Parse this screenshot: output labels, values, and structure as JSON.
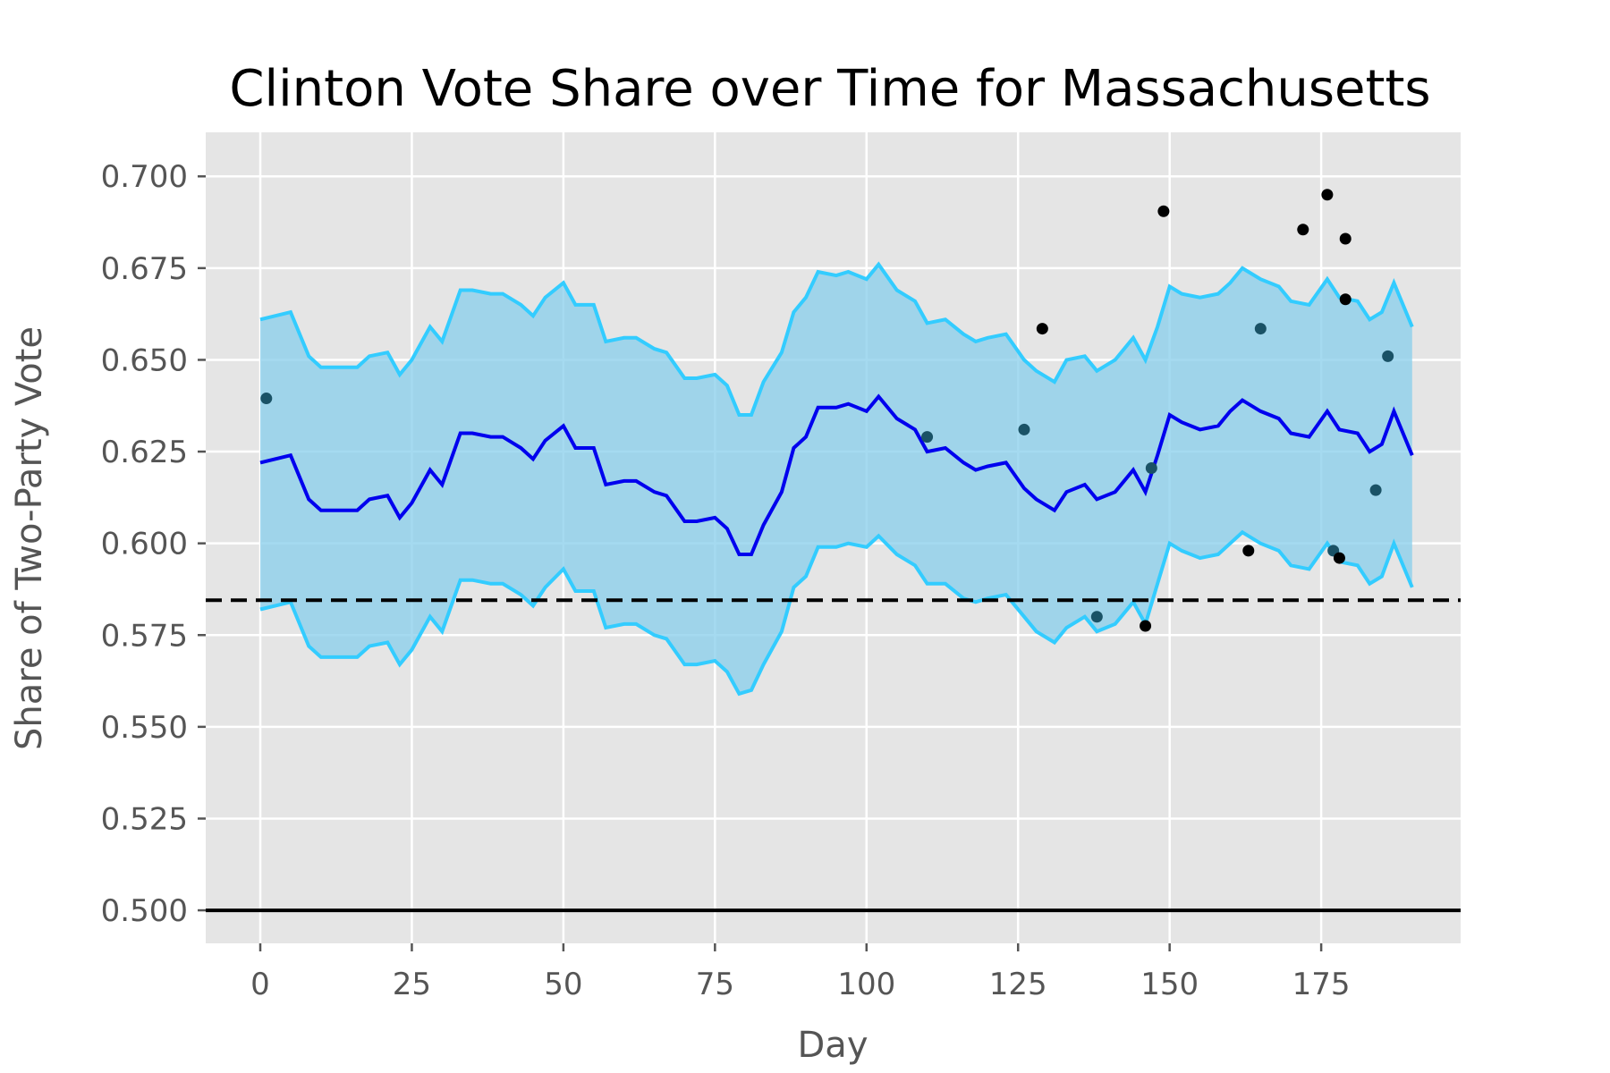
{
  "chart_data": {
    "type": "line",
    "title": "Clinton Vote Share over Time for Massachusetts",
    "xlabel": "Day",
    "ylabel": "Share of Two-Party Vote",
    "xlim": [
      -9,
      198
    ],
    "ylim": [
      0.491,
      0.712
    ],
    "x_ticks": [
      0,
      25,
      50,
      75,
      100,
      125,
      150,
      175
    ],
    "x_tick_labels": [
      "0",
      "25",
      "50",
      "75",
      "100",
      "125",
      "150",
      "175"
    ],
    "y_ticks": [
      0.5,
      0.525,
      0.55,
      0.575,
      0.6,
      0.625,
      0.65,
      0.675,
      0.7
    ],
    "y_tick_labels": [
      "0.500",
      "0.525",
      "0.550",
      "0.575",
      "0.600",
      "0.625",
      "0.650",
      "0.675",
      "0.700"
    ],
    "grid": true,
    "reference_lines": [
      {
        "style": "dashed",
        "color": "#000000",
        "y": 0.5845
      },
      {
        "style": "solid",
        "color": "#000000",
        "y": 0.5
      }
    ],
    "series": [
      {
        "role": "mean",
        "color": "#0000ee",
        "x": [
          0,
          5,
          8,
          10,
          13,
          16,
          18,
          21,
          23,
          25,
          28,
          30,
          33,
          35,
          38,
          40,
          43,
          45,
          47,
          50,
          52,
          55,
          57,
          60,
          62,
          65,
          67,
          70,
          72,
          75,
          77,
          79,
          81,
          83,
          86,
          88,
          90,
          92,
          95,
          97,
          100,
          102,
          105,
          108,
          110,
          113,
          116,
          118,
          120,
          123,
          126,
          128,
          131,
          133,
          136,
          138,
          141,
          144,
          146,
          148,
          150,
          152,
          155,
          158,
          160,
          162,
          165,
          168,
          170,
          173,
          176,
          178,
          181,
          183,
          185,
          187,
          190
        ],
        "y": [
          0.622,
          0.624,
          0.612,
          0.609,
          0.609,
          0.609,
          0.612,
          0.613,
          0.607,
          0.611,
          0.62,
          0.616,
          0.63,
          0.63,
          0.629,
          0.629,
          0.626,
          0.623,
          0.628,
          0.632,
          0.626,
          0.626,
          0.616,
          0.617,
          0.617,
          0.614,
          0.613,
          0.606,
          0.606,
          0.607,
          0.604,
          0.597,
          0.597,
          0.605,
          0.614,
          0.626,
          0.629,
          0.637,
          0.637,
          0.638,
          0.636,
          0.64,
          0.634,
          0.631,
          0.625,
          0.626,
          0.622,
          0.62,
          0.621,
          0.622,
          0.615,
          0.612,
          0.609,
          0.614,
          0.616,
          0.612,
          0.614,
          0.62,
          0.614,
          0.624,
          0.635,
          0.633,
          0.631,
          0.632,
          0.636,
          0.639,
          0.636,
          0.634,
          0.63,
          0.629,
          0.636,
          0.631,
          0.63,
          0.625,
          0.627,
          0.636,
          0.624
        ]
      },
      {
        "role": "upper",
        "color": "#33ccff",
        "x": [
          0,
          5,
          8,
          10,
          13,
          16,
          18,
          21,
          23,
          25,
          28,
          30,
          33,
          35,
          38,
          40,
          43,
          45,
          47,
          50,
          52,
          55,
          57,
          60,
          62,
          65,
          67,
          70,
          72,
          75,
          77,
          79,
          81,
          83,
          86,
          88,
          90,
          92,
          95,
          97,
          100,
          102,
          105,
          108,
          110,
          113,
          116,
          118,
          120,
          123,
          126,
          128,
          131,
          133,
          136,
          138,
          141,
          144,
          146,
          148,
          150,
          152,
          155,
          158,
          160,
          162,
          165,
          168,
          170,
          173,
          176,
          178,
          181,
          183,
          185,
          187,
          190
        ],
        "y": [
          0.661,
          0.663,
          0.651,
          0.648,
          0.648,
          0.648,
          0.651,
          0.652,
          0.646,
          0.65,
          0.659,
          0.655,
          0.669,
          0.669,
          0.668,
          0.668,
          0.665,
          0.662,
          0.667,
          0.671,
          0.665,
          0.665,
          0.655,
          0.656,
          0.656,
          0.653,
          0.652,
          0.645,
          0.645,
          0.646,
          0.643,
          0.635,
          0.635,
          0.644,
          0.652,
          0.663,
          0.667,
          0.674,
          0.673,
          0.674,
          0.672,
          0.676,
          0.669,
          0.666,
          0.66,
          0.661,
          0.657,
          0.655,
          0.656,
          0.657,
          0.65,
          0.647,
          0.644,
          0.65,
          0.651,
          0.647,
          0.65,
          0.656,
          0.65,
          0.659,
          0.67,
          0.668,
          0.667,
          0.668,
          0.671,
          0.675,
          0.672,
          0.67,
          0.666,
          0.665,
          0.672,
          0.667,
          0.666,
          0.661,
          0.663,
          0.671,
          0.659
        ]
      },
      {
        "role": "lower",
        "color": "#33ccff",
        "x": [
          0,
          5,
          8,
          10,
          13,
          16,
          18,
          21,
          23,
          25,
          28,
          30,
          33,
          35,
          38,
          40,
          43,
          45,
          47,
          50,
          52,
          55,
          57,
          60,
          62,
          65,
          67,
          70,
          72,
          75,
          77,
          79,
          81,
          83,
          86,
          88,
          90,
          92,
          95,
          97,
          100,
          102,
          105,
          108,
          110,
          113,
          116,
          118,
          120,
          123,
          126,
          128,
          131,
          133,
          136,
          138,
          141,
          144,
          146,
          148,
          150,
          152,
          155,
          158,
          160,
          162,
          165,
          168,
          170,
          173,
          176,
          178,
          181,
          183,
          185,
          187,
          190
        ],
        "y": [
          0.582,
          0.584,
          0.572,
          0.569,
          0.569,
          0.569,
          0.572,
          0.573,
          0.567,
          0.571,
          0.58,
          0.576,
          0.59,
          0.59,
          0.589,
          0.589,
          0.586,
          0.583,
          0.588,
          0.593,
          0.587,
          0.587,
          0.577,
          0.578,
          0.578,
          0.575,
          0.574,
          0.567,
          0.567,
          0.568,
          0.565,
          0.559,
          0.56,
          0.567,
          0.576,
          0.588,
          0.591,
          0.599,
          0.599,
          0.6,
          0.599,
          0.602,
          0.597,
          0.594,
          0.589,
          0.589,
          0.585,
          0.584,
          0.585,
          0.586,
          0.58,
          0.576,
          0.573,
          0.577,
          0.58,
          0.576,
          0.578,
          0.584,
          0.578,
          0.589,
          0.6,
          0.598,
          0.596,
          0.597,
          0.6,
          0.603,
          0.6,
          0.598,
          0.594,
          0.593,
          0.6,
          0.595,
          0.594,
          0.589,
          0.591,
          0.6,
          0.588
        ]
      }
    ],
    "points_inside": {
      "color": "#1a5266",
      "x": [
        1,
        110,
        126,
        138,
        147,
        165,
        177,
        184,
        186
      ],
      "y": [
        0.6395,
        0.629,
        0.631,
        0.58,
        0.6205,
        0.6585,
        0.598,
        0.6145,
        0.651
      ]
    },
    "points_outside": {
      "color": "#000000",
      "x": [
        129,
        146,
        149,
        163,
        172,
        176,
        178,
        179,
        179
      ],
      "y": [
        0.6585,
        0.5775,
        0.6905,
        0.598,
        0.6855,
        0.695,
        0.596,
        0.683,
        0.6665
      ]
    }
  }
}
